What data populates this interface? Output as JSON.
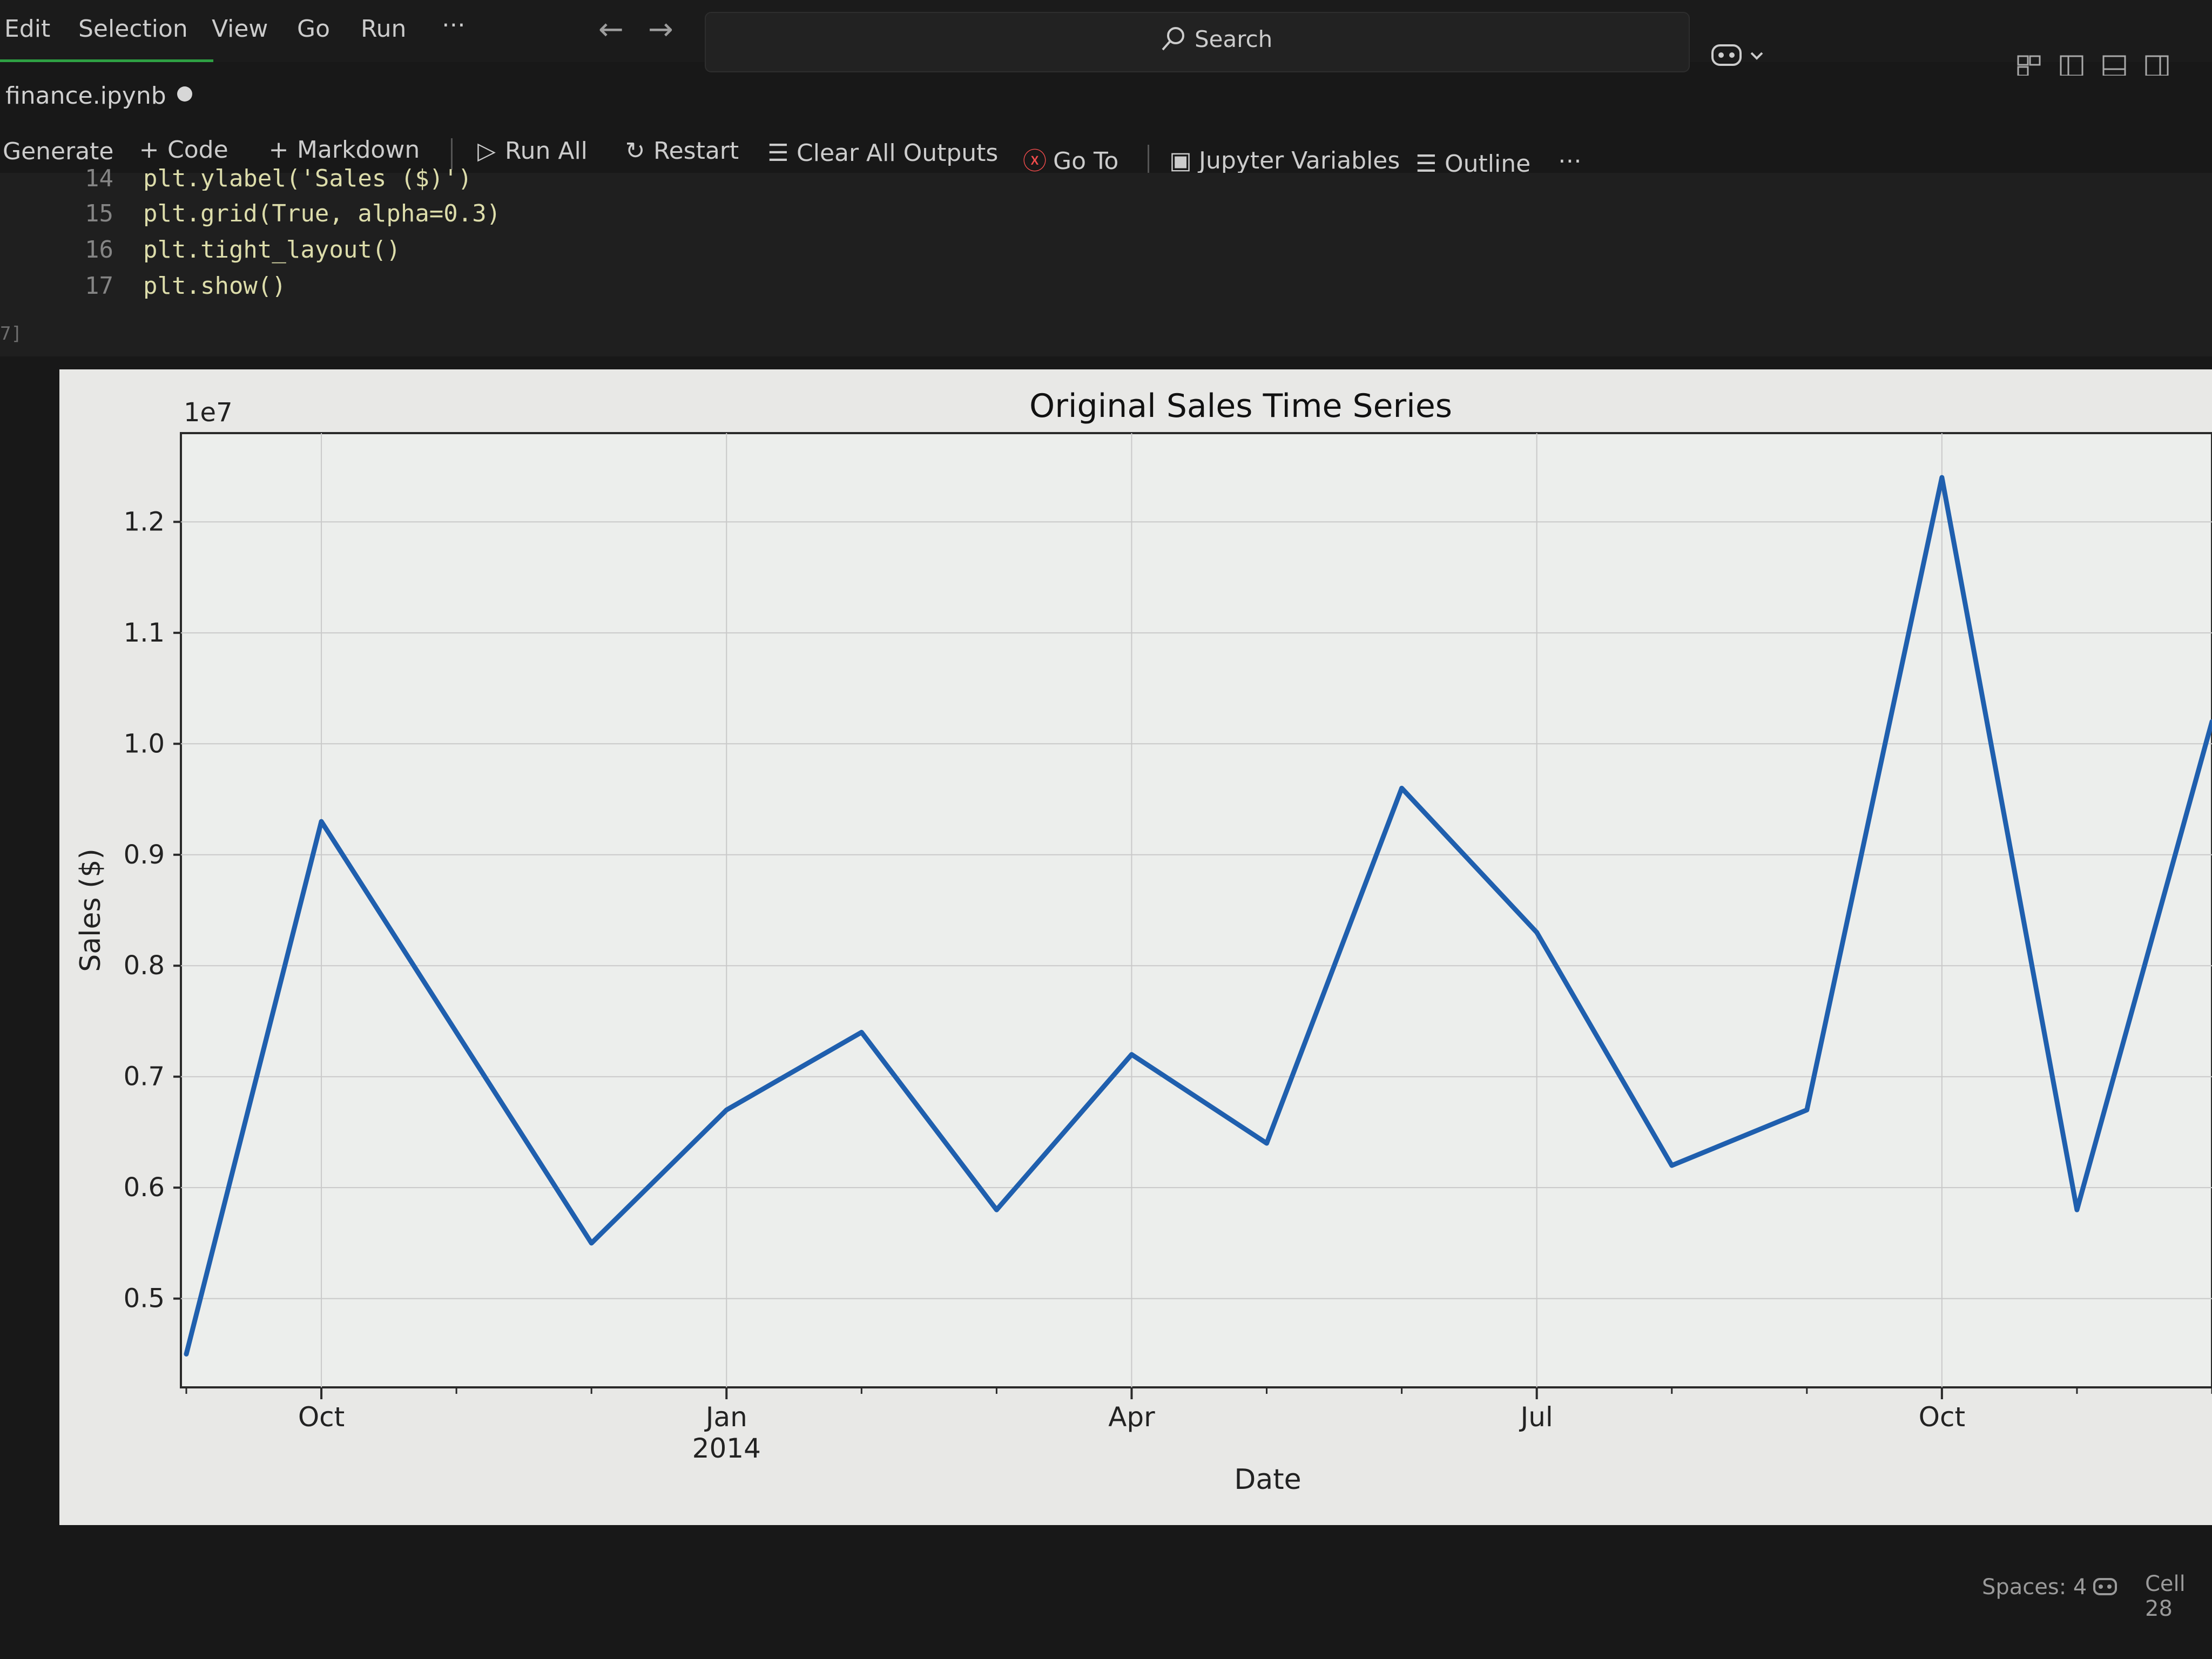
{
  "menu": {
    "items": [
      "Edit",
      "Selection",
      "View",
      "Go",
      "Run",
      "⋯"
    ]
  },
  "titlebar": {
    "search_label": "Search"
  },
  "tab": {
    "title": "finance.ipynb"
  },
  "toolbar": {
    "generate_label": "Generate",
    "code_label": "Code",
    "markdown_label": "Markdown",
    "run_all_label": "Run All",
    "restart_label": "Restart",
    "clear_outputs_label": "Clear All Outputs",
    "goto_label": "Go To",
    "jupyter_variables_label": "Jupyter Variables",
    "outline_label": "Outline",
    "more_label": "⋯"
  },
  "code": {
    "lines": [
      {
        "num": "14",
        "text": "plt.ylabel('Sales ($)')"
      },
      {
        "num": "15",
        "text": "plt.grid(True, alpha=0.3)"
      },
      {
        "num": "16",
        "text": "plt.tight_layout()"
      },
      {
        "num": "17",
        "text": "plt.show()"
      }
    ],
    "execution_count": "7]"
  },
  "chart_data": {
    "type": "line",
    "title": "Original Sales Time Series",
    "xlabel": "Date",
    "ylabel": "Sales ($)",
    "offset_label": "1e7",
    "x": [
      "2013-08",
      "2013-09",
      "2013-10",
      "2013-11",
      "2013-12",
      "2014-01",
      "2014-02",
      "2014-03",
      "2014-04",
      "2014-05",
      "2014-06",
      "2014-07",
      "2014-08",
      "2014-09",
      "2014-10",
      "2014-11"
    ],
    "series": [
      {
        "values": [
          0.45,
          0.93,
          0.74,
          0.55,
          0.67,
          0.74,
          0.58,
          0.72,
          0.64,
          0.96,
          0.83,
          0.62,
          0.67,
          1.24,
          0.58,
          1.02
        ],
        "color": "#1f5fae"
      }
    ],
    "ylim": [
      0.42,
      1.28
    ],
    "yticks": [
      0.5,
      0.6,
      0.7,
      0.8,
      0.9,
      1.0,
      1.1,
      1.2
    ],
    "xticks": [
      {
        "x": "2013-09",
        "label": "Oct"
      },
      {
        "x": "2013-12",
        "label": "Jan\n2014"
      },
      {
        "x": "2014-03",
        "label": "Apr"
      },
      {
        "x": "2014-06",
        "label": "Jul"
      },
      {
        "x": "2014-09",
        "label": "Oct"
      }
    ],
    "grid": true
  },
  "statusbar": {
    "spaces": "Spaces: 4",
    "cell": "Cell 28"
  }
}
